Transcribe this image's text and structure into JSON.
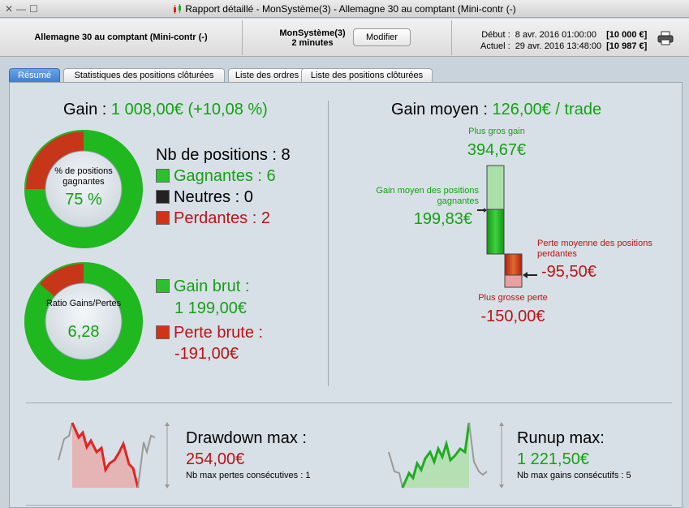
{
  "window": {
    "title": "Rapport détaillé - MonSystème(3) - Allemagne 30 au comptant (Mini-contr (-)"
  },
  "header": {
    "instrument": "Allemagne 30 au comptant (Mini-contr (-)",
    "system": "MonSystème(3)",
    "timeframe": "2 minutes",
    "modify_label": "Modifier",
    "start_label": "Début :",
    "start_date": "8 avr. 2016 01:00:00",
    "start_capital": "[10 000 €]",
    "current_label": "Actuel :",
    "current_date": "29 avr. 2016 13:48:00",
    "current_capital": "[10 987 €]"
  },
  "tabs": [
    {
      "label": "Résumé",
      "active": true
    },
    {
      "label": "Statistiques des positions clôturées",
      "active": false
    },
    {
      "label": "Liste des ordres",
      "active": false
    },
    {
      "label": "Liste des positions clôturées",
      "active": false
    }
  ],
  "summary": {
    "gain_label": "Gain :",
    "gain_value": "1 008,00€ (+10,08 %)",
    "donut1": {
      "label": "% de positions gagnantes",
      "value": "75 %",
      "fraction": 0.75
    },
    "positions": {
      "title": "Nb de positions : 8",
      "winners": "Gagnantes : 6",
      "neutral": "Neutres : 0",
      "losers": "Perdantes : 2"
    },
    "donut2": {
      "label": "Ratio Gains/Pertes",
      "value": "6,28",
      "fraction": 0.8625
    },
    "gross": {
      "gain_label": "Gain brut :",
      "gain_value": "1 199,00€",
      "loss_label": "Perte brute :",
      "loss_value": "-191,00€"
    },
    "avg_gain_label": "Gain moyen :",
    "avg_gain_value": "126,00€ / trade",
    "biggest_gain_label": "Plus gros gain",
    "biggest_gain_value": "394,67€",
    "avg_win_label": "Gain moyen des positions gagnantes",
    "avg_win_value": "199,83€",
    "avg_loss_label": "Perte moyenne des positions perdantes",
    "avg_loss_value": "-95,50€",
    "biggest_loss_label": "Plus grosse perte",
    "biggest_loss_value": "-150,00€",
    "drawdown_label": "Drawdown max :",
    "drawdown_value": "254,00€",
    "drawdown_sub": "Nb max pertes consécutives : 1",
    "runup_label": "Runup max:",
    "runup_value": "1 221,50€",
    "runup_sub": "Nb max gains consécutifs : 5"
  },
  "colors": {
    "green": "#14a014",
    "red": "#b81414",
    "tab_active": "#4a88d8"
  }
}
